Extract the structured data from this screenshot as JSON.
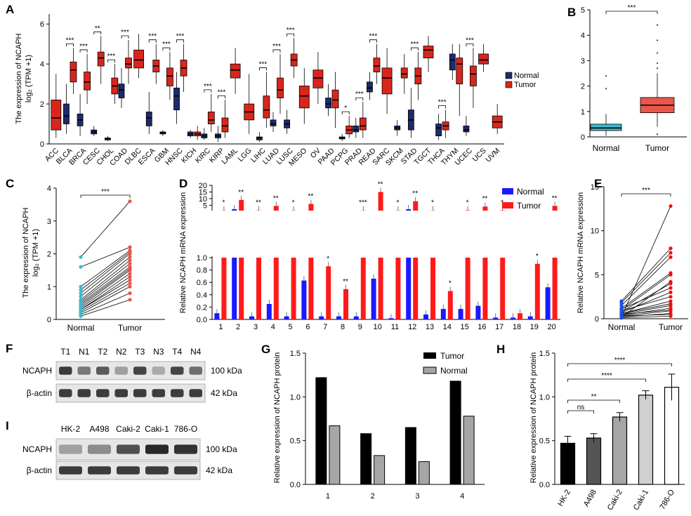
{
  "colors": {
    "normal": "#1f2a6b",
    "tumor": "#d9261c",
    "normal_b": "#3cb8d0",
    "tumor_b": "#e8574a",
    "blue": "#1a1aff",
    "red": "#ff1a1a",
    "black": "#000000",
    "gray": "#a6a6a6",
    "light": "#d0d0d0"
  },
  "panels": {
    "A": "A",
    "B": "B",
    "C": "C",
    "D": "D",
    "E": "E",
    "F": "F",
    "G": "G",
    "H": "H",
    "I": "I"
  },
  "labels": {
    "a_ylabel": "The expression of NCAPH",
    "a_ylabel2": "log₂ (TPM +1)",
    "legend_normal": "Normal",
    "legend_tumor": "Tumor",
    "d_ylabel": "Relative NCAPH mRNA expression",
    "e_ylabel": "Relative NCAPH mRNA expression",
    "g_ylabel": "Relative expression of NCAPH protein",
    "h_ylabel": "Relative expression of NCAPH protein",
    "ns": "ns"
  },
  "chart_data": [
    {
      "panel": "A",
      "type": "box",
      "ylim": [
        0,
        6.5
      ],
      "yticks": [
        0,
        2,
        4,
        6
      ],
      "categories": [
        "ACC",
        "BLCA",
        "BRCA",
        "CESC",
        "CHOL",
        "COAD",
        "DLBC",
        "ESCA",
        "GBM",
        "HNSC",
        "KICH",
        "KIRC",
        "KIRP",
        "LAML",
        "LGG",
        "LIHC",
        "LUAD",
        "LUSC",
        "MESO",
        "OV",
        "PAAD",
        "PCPG",
        "PRAD",
        "READ",
        "SARC",
        "SKCM",
        "STAD",
        "TGCT",
        "THCA",
        "THYM",
        "UCEC",
        "UCS",
        "UVM"
      ],
      "normal": [
        null,
        [
          0.5,
          1.0,
          1.4,
          2.0,
          3.0
        ],
        [
          0.4,
          0.9,
          1.2,
          1.5,
          2.5
        ],
        [
          0.4,
          0.5,
          0.6,
          0.7,
          0.9
        ],
        [
          0.15,
          0.2,
          0.25,
          0.3,
          0.4
        ],
        [
          1.8,
          2.3,
          2.7,
          3.0,
          3.8
        ],
        null,
        [
          0.5,
          0.9,
          1.3,
          1.6,
          2.6
        ],
        [
          0.4,
          0.5,
          0.55,
          0.6,
          0.7
        ],
        [
          1.0,
          1.7,
          2.4,
          2.8,
          3.6
        ],
        [
          0.3,
          0.4,
          0.5,
          0.6,
          0.7
        ],
        [
          0.2,
          0.3,
          0.4,
          0.5,
          0.8
        ],
        [
          0.1,
          0.3,
          0.4,
          0.5,
          0.9
        ],
        null,
        null,
        [
          0.1,
          0.2,
          0.3,
          0.35,
          0.6
        ],
        [
          0.6,
          0.9,
          1.0,
          1.2,
          1.6
        ],
        [
          0.5,
          0.8,
          1.0,
          1.2,
          1.7
        ],
        null,
        null,
        [
          1.4,
          1.8,
          2.0,
          2.3,
          3.0
        ],
        [
          0.15,
          0.25,
          0.3,
          0.35,
          0.5
        ],
        [
          0.3,
          0.6,
          0.7,
          0.9,
          1.3
        ],
        [
          2.2,
          2.6,
          2.8,
          3.1,
          3.6
        ],
        null,
        [
          0.4,
          0.7,
          0.8,
          0.9,
          1.2
        ],
        [
          0.3,
          0.7,
          1.2,
          1.7,
          2.8
        ],
        null,
        [
          0.2,
          0.4,
          0.8,
          1.0,
          1.5
        ],
        [
          3.2,
          3.7,
          4.2,
          4.5,
          5.0
        ],
        [
          0.4,
          0.6,
          0.7,
          0.9,
          1.4
        ],
        null,
        null
      ],
      "tumor": [
        [
          0.3,
          0.7,
          1.3,
          2.2,
          3.5
        ],
        [
          2.5,
          3.1,
          3.7,
          4.1,
          4.8
        ],
        [
          2.0,
          2.7,
          3.1,
          3.6,
          4.5
        ],
        [
          3.0,
          3.9,
          4.3,
          4.6,
          5.4
        ],
        [
          2.0,
          2.5,
          2.9,
          3.3,
          4.0
        ],
        [
          3.0,
          3.8,
          4.0,
          4.3,
          5.2
        ],
        [
          3.3,
          3.8,
          4.2,
          4.7,
          5.5
        ],
        [
          3.0,
          3.6,
          3.9,
          4.2,
          5.0
        ],
        [
          2.2,
          2.9,
          3.4,
          3.8,
          4.6
        ],
        [
          2.6,
          3.4,
          3.8,
          4.2,
          5.0
        ],
        [
          0.2,
          0.4,
          0.5,
          0.6,
          0.9
        ],
        [
          0.6,
          1.0,
          1.2,
          1.6,
          2.5
        ],
        [
          0.3,
          0.6,
          0.9,
          1.3,
          2.2
        ],
        [
          2.5,
          3.3,
          3.7,
          4.0,
          4.8
        ],
        [
          0.5,
          1.2,
          1.6,
          2.0,
          3.5
        ],
        [
          0.8,
          1.3,
          1.7,
          2.4,
          3.6
        ],
        [
          1.5,
          2.3,
          2.7,
          3.3,
          4.5
        ],
        [
          3.3,
          3.9,
          4.2,
          4.5,
          5.3
        ],
        [
          1.0,
          1.8,
          2.4,
          2.9,
          3.8
        ],
        [
          2.0,
          2.8,
          3.3,
          3.7,
          4.6
        ],
        [
          0.8,
          1.8,
          2.2,
          2.7,
          3.6
        ],
        [
          0.3,
          0.5,
          0.7,
          0.9,
          1.4
        ],
        [
          0.3,
          0.7,
          0.9,
          1.3,
          2.1
        ],
        [
          3.0,
          3.6,
          3.9,
          4.3,
          5.0
        ],
        [
          1.5,
          2.5,
          3.3,
          3.8,
          4.8
        ],
        [
          2.5,
          3.3,
          3.5,
          3.8,
          4.5
        ],
        [
          2.2,
          3.0,
          3.4,
          3.8,
          4.6
        ],
        [
          3.6,
          4.3,
          4.7,
          4.9,
          5.4
        ],
        [
          0.3,
          0.7,
          0.9,
          1.1,
          1.7
        ],
        [
          1.4,
          3.0,
          4.0,
          4.3,
          5.0
        ],
        [
          1.8,
          2.9,
          3.5,
          3.9,
          4.8
        ],
        [
          3.6,
          4.0,
          4.2,
          4.5,
          5.0
        ],
        [
          0.5,
          0.8,
          1.1,
          1.4,
          2.0
        ]
      ],
      "sig": [
        "",
        "***",
        "***",
        "**",
        "***",
        "***",
        "",
        "***",
        "***",
        "***",
        "",
        "***",
        "***",
        "",
        "",
        "***",
        "***",
        "***",
        "",
        "",
        "",
        "*",
        "***",
        "***",
        "",
        "",
        "***",
        "",
        "***",
        "",
        "***",
        "",
        ""
      ]
    },
    {
      "panel": "B",
      "type": "box",
      "categories": [
        "Normal",
        "Tumor"
      ],
      "ylim": [
        0,
        5
      ],
      "yticks": [
        0,
        1,
        2,
        3,
        4,
        5
      ],
      "normal": [
        0.05,
        0.25,
        0.35,
        0.5,
        0.9
      ],
      "tumor": [
        0.4,
        0.95,
        1.25,
        1.55,
        2.5
      ],
      "sig": "***"
    },
    {
      "panel": "C",
      "type": "paired",
      "categories": [
        "Normal",
        "Tumor"
      ],
      "ylim": [
        0,
        4
      ],
      "yticks": [
        0,
        1,
        2,
        3,
        4
      ],
      "normal": [
        0.1,
        0.15,
        0.2,
        0.25,
        0.3,
        0.3,
        0.35,
        0.4,
        0.45,
        0.5,
        0.55,
        0.6,
        0.7,
        0.8,
        0.9,
        1.0,
        1.6,
        1.9
      ],
      "tumor": [
        0.6,
        0.8,
        1.0,
        1.1,
        1.2,
        1.3,
        1.4,
        1.5,
        1.55,
        1.6,
        1.7,
        1.8,
        1.9,
        2.0,
        2.05,
        2.1,
        2.2,
        3.6
      ],
      "sig": "***"
    },
    {
      "panel": "D",
      "type": "bar",
      "categories": [
        "1",
        "2",
        "3",
        "4",
        "5",
        "6",
        "7",
        "8",
        "9",
        "10",
        "11",
        "12",
        "13",
        "14",
        "15",
        "16",
        "17",
        "18",
        "19",
        "20"
      ],
      "yticks_low": [
        0,
        0.2,
        0.4,
        0.6,
        0.8,
        1.0
      ],
      "yticks_high": [
        5,
        10,
        15,
        20
      ],
      "series": [
        {
          "name": "Normal",
          "values": [
            0.1,
            2.0,
            0.05,
            0.25,
            0.05,
            0.63,
            0.05,
            0.05,
            0.05,
            0.66,
            0.02,
            2.0,
            0.08,
            0.17,
            0.17,
            0.22,
            0.03,
            0.03,
            0.05,
            0.52
          ]
        },
        {
          "name": "Tumor",
          "values": [
            1.1,
            9.0,
            1.1,
            4.5,
            1.1,
            6.0,
            0.86,
            0.49,
            1.1,
            15.0,
            1.1,
            8.0,
            1.1,
            0.46,
            1.2,
            4.0,
            1.2,
            0.1,
            0.9,
            4.5
          ]
        }
      ],
      "sig": [
        "*",
        "**",
        "**",
        "**",
        "*",
        "**",
        "*",
        "**",
        "***",
        "**",
        "*",
        "**",
        "*",
        "*",
        "*",
        "**",
        "*",
        "",
        "*",
        "**"
      ]
    },
    {
      "panel": "E",
      "type": "paired",
      "categories": [
        "Normal",
        "Tumor"
      ],
      "ylim": [
        0,
        15
      ],
      "yticks": [
        0,
        5,
        10,
        15
      ],
      "normal": [
        0.1,
        0.2,
        0.3,
        0.4,
        0.5,
        0.6,
        0.7,
        0.8,
        1.0,
        1.2,
        1.5,
        1.8,
        2.0,
        0.2,
        0.3,
        0.5,
        0.6,
        0.9,
        1.1,
        0.2
      ],
      "tumor": [
        0.3,
        0.6,
        0.9,
        1.2,
        1.5,
        2.0,
        3.0,
        4.0,
        5.0,
        5.2,
        7.0,
        7.5,
        8.0,
        12.8,
        0.5,
        1.0,
        1.7,
        2.5,
        3.5,
        4.2
      ],
      "sig": "***"
    },
    {
      "panel": "G",
      "type": "bar",
      "categories": [
        "1",
        "2",
        "3",
        "4"
      ],
      "ylim": [
        0,
        1.5
      ],
      "yticks": [
        0.0,
        0.5,
        1.0,
        1.5
      ],
      "series": [
        {
          "name": "Tumor",
          "values": [
            1.22,
            0.58,
            0.65,
            1.18
          ]
        },
        {
          "name": "Normal",
          "values": [
            0.67,
            0.33,
            0.26,
            0.78
          ]
        }
      ]
    },
    {
      "panel": "H",
      "type": "bar",
      "categories": [
        "HK-2",
        "A498",
        "Caki-2",
        "Caki-1",
        "786-O"
      ],
      "ylim": [
        0,
        1.5
      ],
      "yticks": [
        0.0,
        0.5,
        1.0,
        1.5
      ],
      "values": [
        0.47,
        0.53,
        0.77,
        1.02,
        1.11
      ],
      "errors": [
        0.08,
        0.05,
        0.05,
        0.05,
        0.15
      ],
      "brackets": [
        {
          "from": 0,
          "to": 1,
          "label": "ns"
        },
        {
          "from": 0,
          "to": 2,
          "label": "**"
        },
        {
          "from": 0,
          "to": 3,
          "label": "****"
        },
        {
          "from": 0,
          "to": 4,
          "label": "****"
        }
      ]
    }
  ],
  "blot_F": {
    "lanes": [
      "T1",
      "N1",
      "T2",
      "N2",
      "T3",
      "N3",
      "T4",
      "N4"
    ],
    "rows": [
      "NCAPH",
      "β-actin"
    ],
    "sizes": [
      "100 kDa",
      "42 kDa"
    ],
    "intensity": [
      0.85,
      0.55,
      0.7,
      0.35,
      0.8,
      0.3,
      0.8,
      0.6
    ]
  },
  "blot_I": {
    "lanes": [
      "HK-2",
      "A498",
      "Caki-2",
      "Caki-1",
      "786-O"
    ],
    "rows": [
      "NCAPH",
      "β-actin"
    ],
    "sizes": [
      "100 kDa",
      "42 kDa"
    ],
    "intensity": [
      0.35,
      0.45,
      0.75,
      0.95,
      0.9
    ]
  }
}
